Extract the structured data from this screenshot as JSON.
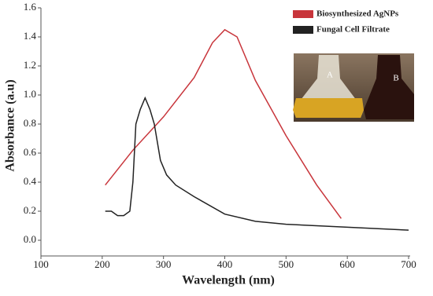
{
  "chart_data": {
    "type": "line",
    "x_label": "Wavelength (nm)",
    "y_label": "Absorbance (a.u)",
    "xlim": [
      100,
      700
    ],
    "xticks": [
      100,
      200,
      300,
      400,
      500,
      600,
      700
    ],
    "ylim": [
      0,
      1.6
    ],
    "yticks": [
      {
        "value": 0,
        "label": "0.0"
      },
      0.2,
      0.4,
      0.6,
      0.8,
      {
        "value": 1,
        "label": "1.0"
      },
      1.2,
      1.4,
      1.6
    ],
    "annotations": [
      "A",
      "B"
    ],
    "series": [
      {
        "name": "Biosynthesized AgNPs",
        "color": "#c8353b",
        "x": [
          205,
          250,
          300,
          350,
          380,
          400,
          420,
          450,
          500,
          550,
          590
        ],
        "values": [
          0.38,
          0.62,
          0.85,
          1.12,
          1.36,
          1.45,
          1.4,
          1.1,
          0.72,
          0.38,
          0.15
        ]
      },
      {
        "name": "Fungal Cell Filtrate",
        "color": "#222222",
        "x": [
          205,
          215,
          225,
          235,
          245,
          250,
          255,
          262,
          270,
          278,
          285,
          295,
          305,
          320,
          350,
          400,
          450,
          500,
          600,
          700
        ],
        "values": [
          0.2,
          0.2,
          0.17,
          0.17,
          0.2,
          0.4,
          0.8,
          0.9,
          0.98,
          0.9,
          0.8,
          0.55,
          0.45,
          0.38,
          0.3,
          0.18,
          0.13,
          0.11,
          0.09,
          0.07
        ]
      }
    ]
  }
}
